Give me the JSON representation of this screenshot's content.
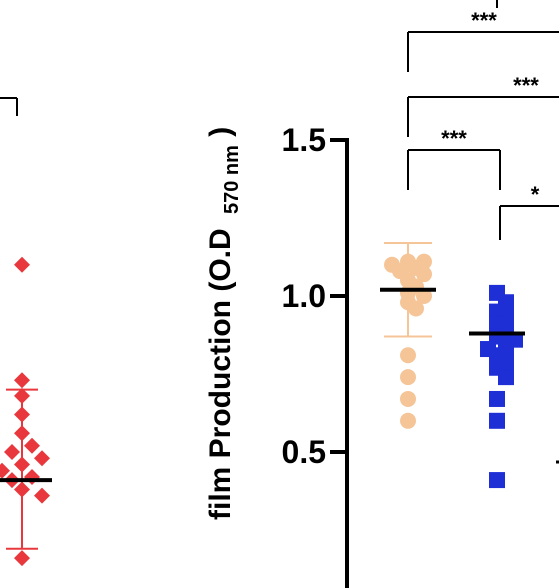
{
  "chart_data": {
    "type": "scatter",
    "title": "",
    "ylabel": "film Production (O.D",
    "ylabel_subscript": "570 nm",
    "ylabel_suffix": ")",
    "yticks": [
      {
        "value": 0.5,
        "label": "0.5"
      },
      {
        "value": 1.0,
        "label": "1.0"
      },
      {
        "value": 1.5,
        "label": "1.5"
      }
    ],
    "ylim": [
      0.08,
      1.96
    ],
    "grid": false,
    "series": [
      {
        "marker": "diamond",
        "color": "#e8383d",
        "partially_visible": true,
        "values": [
          1.1,
          0.73,
          0.68,
          0.62,
          0.56,
          0.52,
          0.5,
          0.48,
          0.48,
          0.46,
          0.44,
          0.42,
          0.41,
          0.38,
          0.36,
          0.16
        ],
        "mean": 0.41,
        "sd_upper": 0.7,
        "sd_lower": 0.19
      },
      {
        "marker": "circle",
        "color": "#f5c598",
        "values": [
          1.11,
          1.11,
          1.1,
          1.09,
          1.08,
          1.07,
          1.05,
          1.03,
          1.01,
          1.0,
          0.98,
          0.96,
          0.81,
          0.74,
          0.67,
          0.6
        ],
        "mean": 1.02,
        "sd_upper": 1.17,
        "sd_lower": 0.87
      },
      {
        "marker": "square",
        "color": "#1f2fd6",
        "values": [
          1.01,
          0.98,
          0.95,
          0.93,
          0.91,
          0.89,
          0.87,
          0.86,
          0.84,
          0.83,
          0.81,
          0.79,
          0.77,
          0.74,
          0.67,
          0.6,
          0.41
        ],
        "mean": 0.88,
        "sd_upper": null,
        "sd_lower": null
      }
    ],
    "significance": [
      {
        "label": "***"
      },
      {
        "label": "***"
      },
      {
        "label": "***"
      },
      {
        "label": "*"
      }
    ]
  }
}
